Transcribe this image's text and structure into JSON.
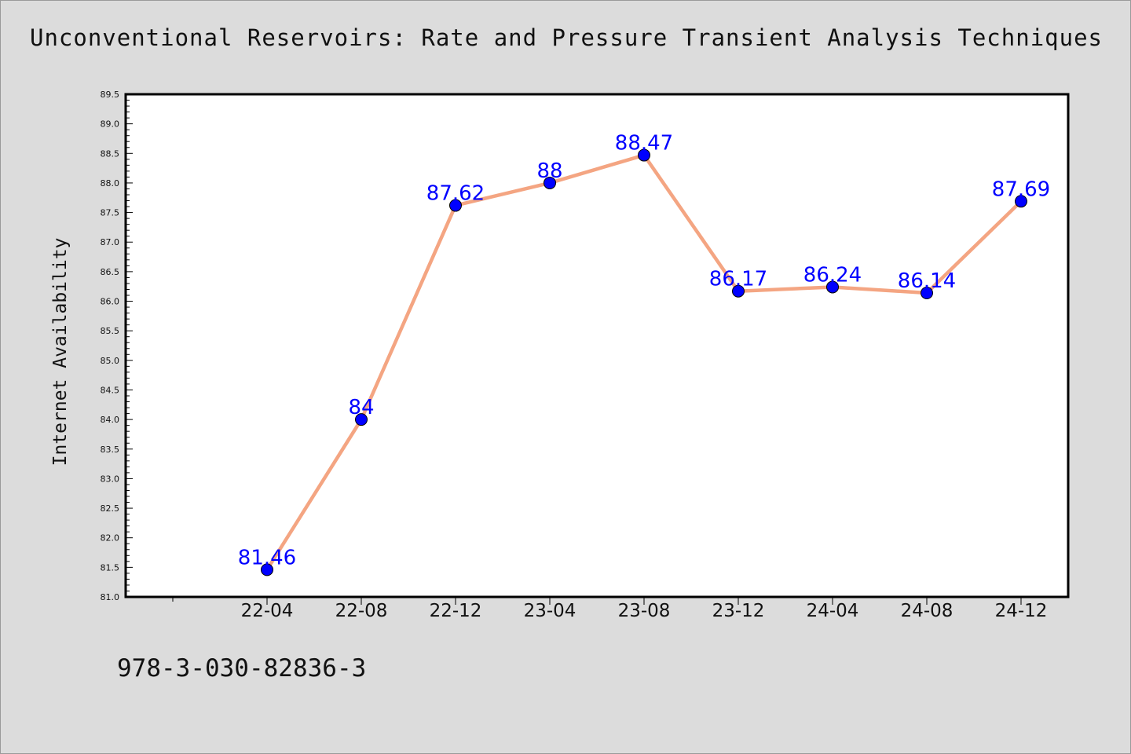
{
  "page": {
    "title": "Unconventional Reservoirs: Rate and Pressure Transient Analysis Techniques",
    "footer_code": "978-3-030-82836-3"
  },
  "chart_data": {
    "type": "line",
    "title": "Unconventional Reservoirs: Rate and Pressure Transient Analysis Techniques",
    "xlabel": "",
    "ylabel": "Internet Availability",
    "categories": [
      "22-04",
      "22-08",
      "22-12",
      "23-04",
      "23-08",
      "23-12",
      "24-04",
      "24-08",
      "24-12"
    ],
    "series": [
      {
        "values": [
          81.46,
          84,
          87.62,
          88,
          88.47,
          86.17,
          86.24,
          86.14,
          87.69
        ],
        "data_labels": [
          "81.46",
          "84",
          "87.62",
          "88",
          "88.47",
          "86.17",
          "86.24",
          "86.14",
          "87.69"
        ]
      }
    ],
    "ylim": [
      81.0,
      89.5
    ],
    "yticks": [
      "81.0",
      "81.5",
      "82.0",
      "82.5",
      "83.0",
      "83.5",
      "84.0",
      "84.5",
      "85.0",
      "85.5",
      "86.0",
      "86.5",
      "87.0",
      "87.5",
      "88.0",
      "88.5",
      "89.0",
      "89.5"
    ],
    "grid": false,
    "legend": "none",
    "colors": {
      "line": "#f4a582",
      "marker": "#0000ff",
      "data_label": "#0000ff",
      "plot_background": "#ffffff",
      "page_background": "#dcdcdc"
    }
  }
}
